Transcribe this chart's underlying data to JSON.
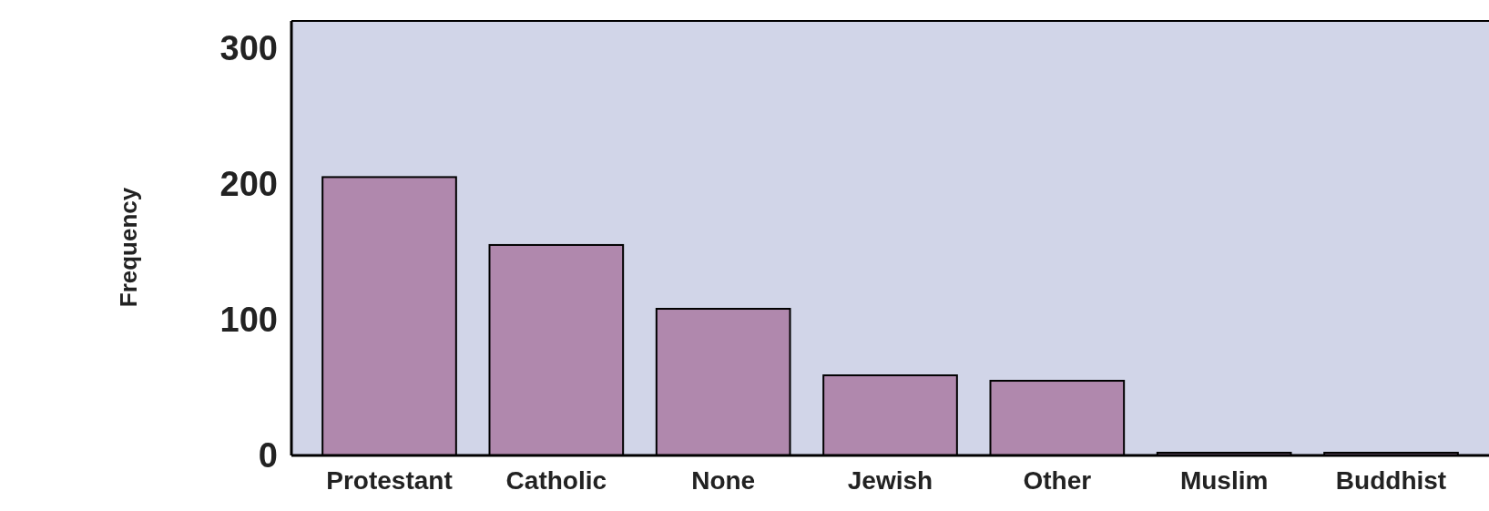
{
  "chart_data": {
    "type": "bar",
    "ylabel": "Frequency",
    "categories": [
      "Protestant",
      "Catholic",
      "None",
      "Jewish",
      "Other",
      "Muslim",
      "Buddhist"
    ],
    "values": [
      205,
      155,
      108,
      59,
      55,
      2,
      2
    ],
    "color": "#b088ad",
    "ylim": [
      0,
      320
    ],
    "yticks": [
      0,
      100,
      200,
      300
    ],
    "grid": false
  }
}
